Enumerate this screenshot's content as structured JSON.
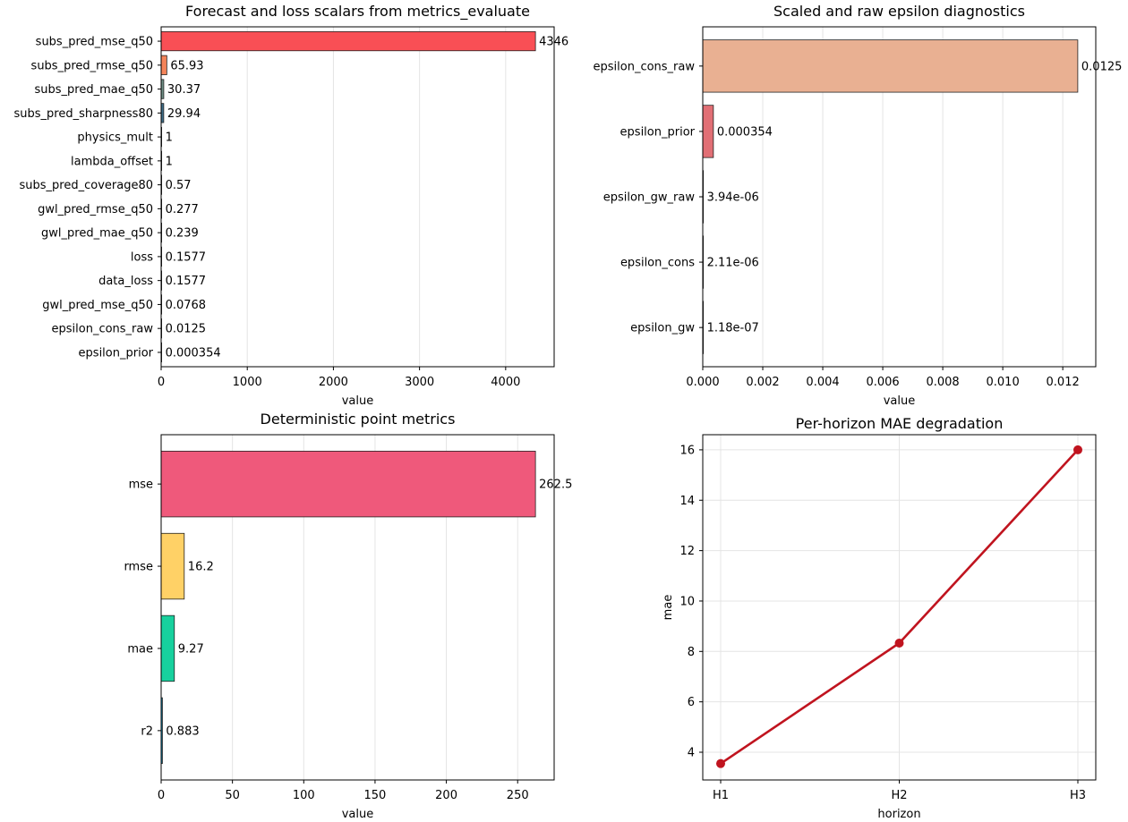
{
  "chart_data": [
    {
      "type": "bar",
      "orientation": "horizontal",
      "title": "Forecast and loss scalars from metrics_evaluate",
      "xlabel": "value",
      "ylabel": "",
      "xlim": [
        0,
        4563
      ],
      "xticks": [
        0,
        1000,
        2000,
        3000,
        4000
      ],
      "xtick_labels": [
        "0",
        "1000",
        "2000",
        "3000",
        "4000"
      ],
      "grid": "x",
      "categories": [
        "subs_pred_mse_q50",
        "subs_pred_rmse_q50",
        "subs_pred_mae_q50",
        "subs_pred_sharpness80",
        "physics_mult",
        "lambda_offset",
        "subs_pred_coverage80",
        "gwl_pred_rmse_q50",
        "gwl_pred_mae_q50",
        "loss",
        "data_loss",
        "gwl_pred_mse_q50",
        "epsilon_cons_raw",
        "epsilon_prior"
      ],
      "values": [
        4346,
        65.93,
        30.37,
        29.94,
        1,
        1,
        0.57,
        0.277,
        0.239,
        0.1577,
        0.1577,
        0.0768,
        0.0125,
        0.000354
      ],
      "value_labels": [
        "4346",
        "65.93",
        "30.37",
        "29.94",
        "1",
        "1",
        "0.57",
        "0.277",
        "0.239",
        "0.1577",
        "0.1577",
        "0.0768",
        "0.0125",
        "0.000354"
      ],
      "colors": [
        "#f94f55",
        "#f4845a",
        "#6f8f86",
        "#3f6f8a",
        "#4a4a8a",
        "#5a3d7a",
        "#6a2f6a",
        "#7a2a5a",
        "#8a2a4a",
        "#9a2b3a",
        "#aa2e2e",
        "#ba3a2a",
        "#ca4a2a",
        "#da5a2a"
      ]
    },
    {
      "type": "bar",
      "orientation": "horizontal",
      "title": "Scaled and raw epsilon diagnostics",
      "xlabel": "value",
      "ylabel": "",
      "xlim": [
        0,
        0.0131
      ],
      "xticks": [
        0,
        0.002,
        0.004,
        0.006,
        0.008,
        0.01,
        0.012
      ],
      "xtick_labels": [
        "0.000",
        "0.002",
        "0.004",
        "0.006",
        "0.008",
        "0.010",
        "0.012"
      ],
      "grid": "x",
      "categories": [
        "epsilon_cons_raw",
        "epsilon_prior",
        "epsilon_gw_raw",
        "epsilon_cons",
        "epsilon_gw"
      ],
      "values": [
        0.0125,
        0.000354,
        3.94e-06,
        2.11e-06,
        1.18e-07
      ],
      "value_labels": [
        "0.0125",
        "0.000354",
        "3.94e-06",
        "2.11e-06",
        "1.18e-07"
      ],
      "colors": [
        "#e9b092",
        "#e16f75",
        "#7c5ea0",
        "#4e5d96",
        "#3c4f8a"
      ]
    },
    {
      "type": "bar",
      "orientation": "horizontal",
      "title": "Deterministic point metrics",
      "xlabel": "value",
      "ylabel": "",
      "xlim": [
        0,
        275.6
      ],
      "xticks": [
        0,
        50,
        100,
        150,
        200,
        250
      ],
      "xtick_labels": [
        "0",
        "50",
        "100",
        "150",
        "200",
        "250"
      ],
      "grid": "x",
      "categories": [
        "mse",
        "rmse",
        "mae",
        "r2"
      ],
      "values": [
        262.5,
        16.2,
        9.27,
        0.883
      ],
      "value_labels": [
        "262.5",
        "16.2",
        "9.27",
        "0.883"
      ],
      "colors": [
        "#ef597b",
        "#ffd166",
        "#17d19e",
        "#118ab2"
      ]
    },
    {
      "type": "line",
      "title": "Per-horizon MAE degradation",
      "xlabel": "horizon",
      "ylabel": "mae",
      "categories": [
        "H1",
        "H2",
        "H3"
      ],
      "series": [
        {
          "values": [
            3.55,
            8.33,
            16.0
          ],
          "color": "#c0141f"
        }
      ],
      "ylim": [
        2.9,
        16.6
      ],
      "yticks": [
        4,
        6,
        8,
        10,
        12,
        14,
        16
      ],
      "ytick_labels": [
        "4",
        "6",
        "8",
        "10",
        "12",
        "14",
        "16"
      ],
      "grid": "both"
    }
  ]
}
